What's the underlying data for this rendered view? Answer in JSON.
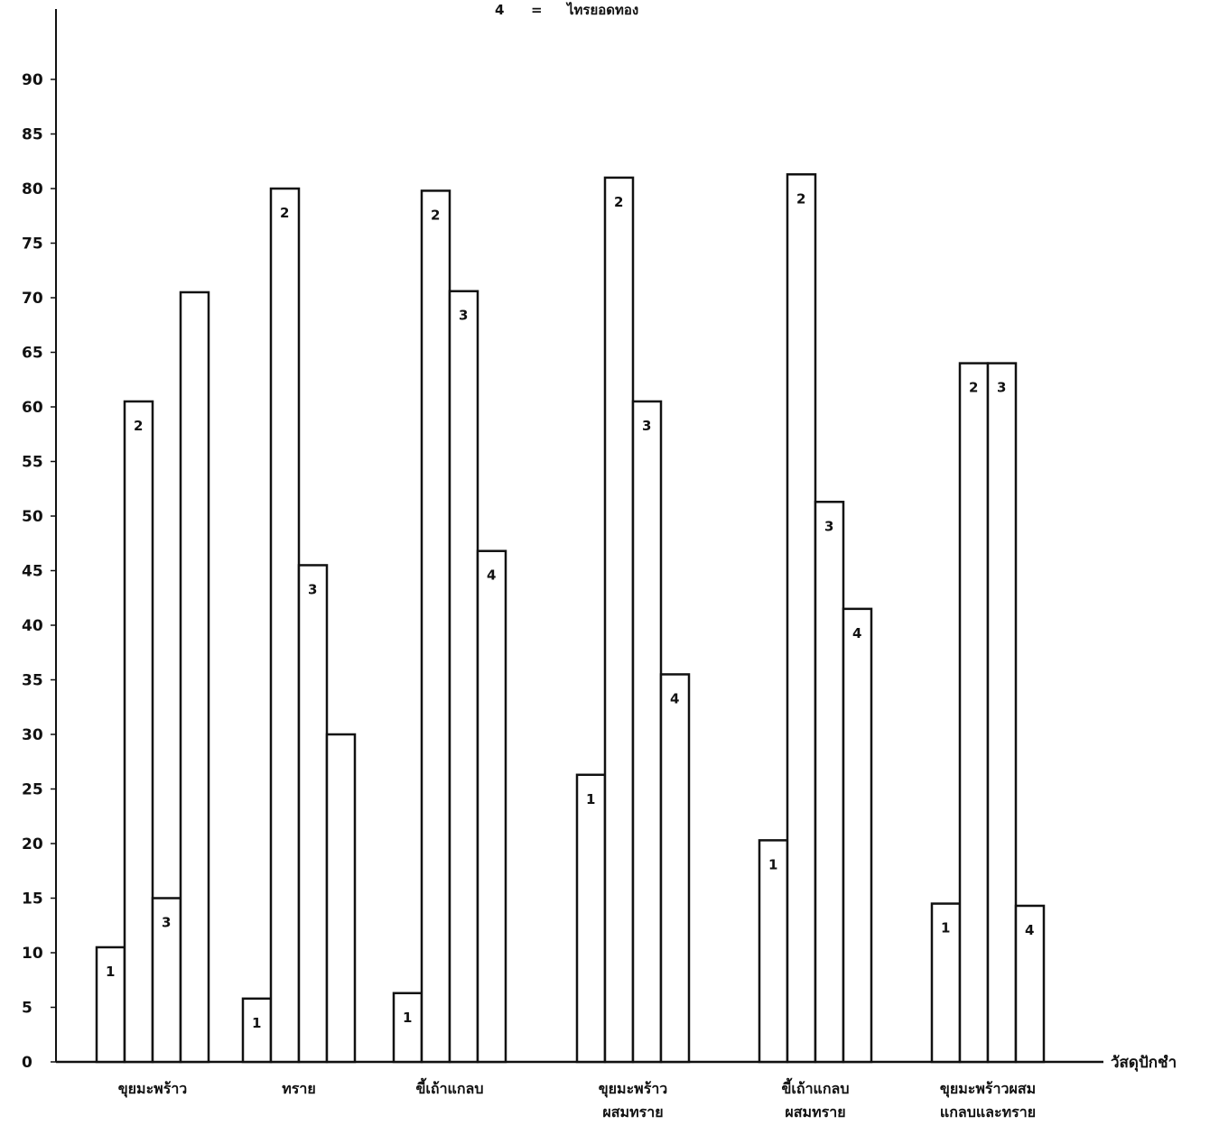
{
  "header": {
    "key_number": "4",
    "key_equals": "=",
    "key_text": "ไทรยอดทอง"
  },
  "chart_data": {
    "type": "bar",
    "xlabel": "วัสดุปักชำ",
    "ylabel": "",
    "ylim": [
      0,
      90
    ],
    "yticks": [
      "0",
      "5",
      "10",
      "15",
      "20",
      "25",
      "30",
      "35",
      "40",
      "45",
      "50",
      "55",
      "60",
      "65",
      "70",
      "75",
      "80",
      "85",
      "90"
    ],
    "grid": false,
    "groups": [
      {
        "label": [
          "ขุยมะพร้าว"
        ],
        "bars": [
          {
            "label": "1",
            "value": 10.5
          },
          {
            "label": "2",
            "value": 60.5
          },
          {
            "label": "3",
            "value": 15
          },
          {
            "label": "",
            "value": 70.5
          }
        ]
      },
      {
        "label": [
          "ทราย"
        ],
        "bars": [
          {
            "label": "1",
            "value": 5.8
          },
          {
            "label": "2",
            "value": 80
          },
          {
            "label": "3",
            "value": 45.5
          },
          {
            "label": "",
            "value": 30
          }
        ]
      },
      {
        "label": [
          "ขี้เถ้าแกลบ"
        ],
        "bars": [
          {
            "label": "1",
            "value": 6.3
          },
          {
            "label": "2",
            "value": 79.8
          },
          {
            "label": "3",
            "value": 70.6
          },
          {
            "label": "4",
            "value": 46.8
          }
        ]
      },
      {
        "label": [
          "ขุยมะพร้าว",
          "ผสมทราย"
        ],
        "bars": [
          {
            "label": "1",
            "value": 26.3
          },
          {
            "label": "2",
            "value": 81
          },
          {
            "label": "3",
            "value": 60.5
          },
          {
            "label": "4",
            "value": 35.5
          }
        ]
      },
      {
        "label": [
          "ขี้เถ้าแกลบ",
          "ผสมทราย"
        ],
        "bars": [
          {
            "label": "1",
            "value": 20.3
          },
          {
            "label": "2",
            "value": 81.3
          },
          {
            "label": "3",
            "value": 51.3
          },
          {
            "label": "4",
            "value": 41.5
          }
        ]
      },
      {
        "label": [
          "ขุยมะพร้าวผสม",
          "แกลบและทราย"
        ],
        "bars": [
          {
            "label": "1",
            "value": 14.5
          },
          {
            "label": "2",
            "value": 64
          },
          {
            "label": "3",
            "value": 64
          },
          {
            "label": "4",
            "value": 14.3
          }
        ]
      }
    ]
  }
}
